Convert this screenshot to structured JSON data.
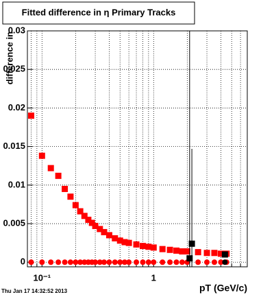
{
  "chart_data": {
    "type": "scatter",
    "title": "Fitted difference in η  Primary Tracks",
    "xlabel": "pT (GeV/c)",
    "ylabel": "difference in",
    "timestamp": "Thu Jan 17 14:32:52 2013",
    "xlog": true,
    "grid": true,
    "xlim": [
      0.074,
      6.9
    ],
    "ylim": [
      -0.0006,
      0.03
    ],
    "xticks": [
      {
        "value": 0.1,
        "label": "10⁻¹"
      },
      1
    ],
    "xminor": [
      0.08,
      0.09,
      0.2,
      0.3,
      0.4,
      0.5,
      0.6,
      0.7,
      0.8,
      0.9,
      2,
      3,
      4,
      5,
      6
    ],
    "yticks": [
      0,
      0.005,
      0.01,
      0.015,
      0.02,
      0.025,
      0.03
    ],
    "series": [
      {
        "color": "#ff0000",
        "marker": "square",
        "x": [
          0.08,
          0.1,
          0.12,
          0.14,
          0.16,
          0.18,
          0.2,
          0.22,
          0.24,
          0.26,
          0.28,
          0.3,
          0.33,
          0.36,
          0.4,
          0.45,
          0.5,
          0.55,
          0.6,
          0.7,
          0.8,
          0.9,
          1.0,
          1.2,
          1.4,
          1.6,
          1.8,
          2.0,
          2.5,
          3.0,
          3.5,
          4.0,
          4.5
        ],
        "values": [
          0.019,
          0.0138,
          0.0122,
          0.0112,
          0.0095,
          0.0085,
          0.0074,
          0.0066,
          0.006,
          0.0055,
          0.0051,
          0.0047,
          0.0043,
          0.0039,
          0.0035,
          0.0031,
          0.0028,
          0.0026,
          0.0025,
          0.0023,
          0.0021,
          0.002,
          0.0019,
          0.0017,
          0.0016,
          0.0015,
          0.0014,
          0.0014,
          0.0013,
          0.0012,
          0.0012,
          0.0011,
          0.0011
        ]
      },
      {
        "color": "#ff0000",
        "marker": "circle",
        "x": [
          0.08,
          0.1,
          0.12,
          0.14,
          0.16,
          0.18,
          0.2,
          0.22,
          0.24,
          0.26,
          0.28,
          0.3,
          0.33,
          0.36,
          0.4,
          0.45,
          0.5,
          0.55,
          0.6,
          0.7,
          0.8,
          0.9,
          1.0,
          1.2,
          1.4,
          1.6,
          1.8,
          2.0,
          2.5,
          3.0,
          3.5,
          4.0,
          4.5
        ],
        "values": [
          0,
          0,
          0,
          0,
          0,
          0,
          0,
          0,
          0,
          0,
          0,
          0,
          0,
          0,
          0,
          0,
          0,
          0,
          0,
          0,
          0,
          0,
          0,
          0,
          0,
          0,
          0,
          0,
          0,
          0,
          0,
          0,
          0
        ]
      },
      {
        "color": "#000000",
        "marker": "square",
        "x": [
          2.1,
          2.2,
          4.35
        ],
        "values": [
          0.0005,
          0.0024,
          0.001
        ],
        "errors": [
          0.03,
          0.0123,
          0.0001
        ]
      },
      {
        "color": "#000000",
        "marker": "circle",
        "x": [
          4.35
        ],
        "values": [
          0
        ]
      }
    ]
  }
}
